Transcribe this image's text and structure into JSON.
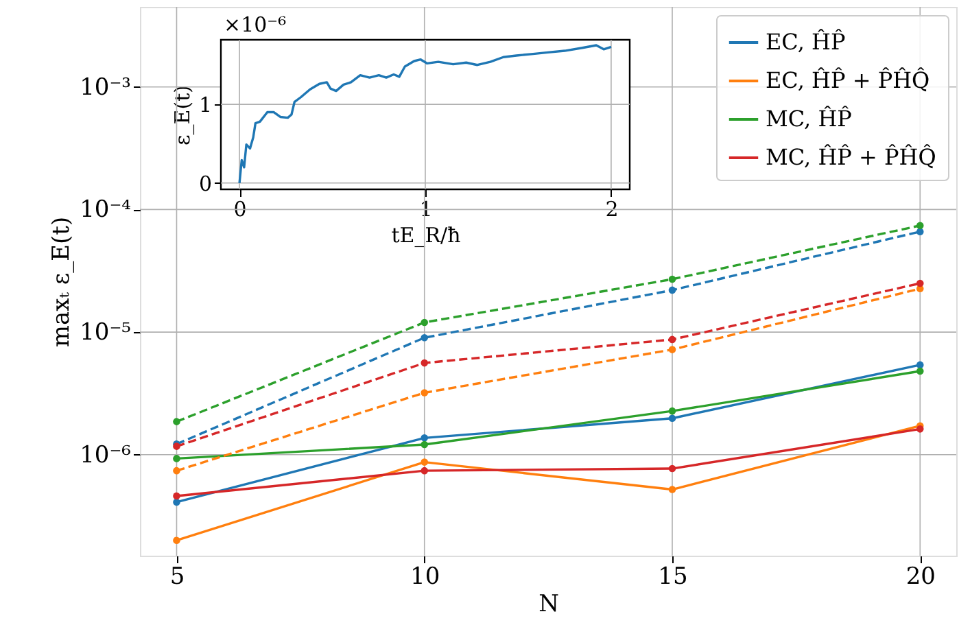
{
  "chart_data": [
    {
      "type": "line",
      "xlabel": "N",
      "ylabel": "maxₜ ε_E(t)",
      "x": [
        5,
        10,
        15,
        20
      ],
      "xlim": [
        4.26,
        20.73
      ],
      "xticks": [
        5,
        10,
        15,
        20
      ],
      "log": "y",
      "ylim": [
        1.5e-07,
        0.0045
      ],
      "yticks": [
        {
          "value": 1e-06,
          "label": "10⁻⁶"
        },
        {
          "value": 1e-05,
          "label": "10⁻⁵"
        },
        {
          "value": 0.0001,
          "label": "10⁻⁴"
        },
        {
          "value": 0.001,
          "label": "10⁻³"
        }
      ],
      "grid": true,
      "legend": "top right",
      "marker": "circle",
      "series": [
        {
          "name": "EC, ĤP̂",
          "color": "#1f77b4",
          "line_style": "solid",
          "values": [
            4.1e-07,
            1.37e-06,
            1.98e-06,
            5.4e-06
          ]
        },
        {
          "name": "EC, ĤP̂ + P̂ĤQ̂",
          "color": "#ff7f0e",
          "line_style": "solid",
          "values": [
            2e-07,
            8.7e-07,
            5.2e-07,
            1.72e-06
          ]
        },
        {
          "name": "MC, ĤP̂",
          "color": "#2ca02c",
          "line_style": "solid",
          "values": [
            9.3e-07,
            1.21e-06,
            2.27e-06,
            4.8e-06
          ]
        },
        {
          "name": "MC, ĤP̂ + P̂ĤQ̂",
          "color": "#d62728",
          "line_style": "solid",
          "values": [
            4.6e-07,
            7.4e-07,
            7.7e-07,
            1.62e-06
          ]
        },
        {
          "color": "#1f77b4",
          "line_style": "dashed",
          "values": [
            1.22e-06,
            9e-06,
            2.2e-05,
            6.6e-05
          ]
        },
        {
          "color": "#ff7f0e",
          "line_style": "dashed",
          "values": [
            7.4e-07,
            3.2e-06,
            7.2e-06,
            2.26e-05
          ]
        },
        {
          "color": "#2ca02c",
          "line_style": "dashed",
          "values": [
            1.86e-06,
            1.2e-05,
            2.7e-05,
            7.4e-05
          ]
        },
        {
          "color": "#d62728",
          "line_style": "dashed",
          "values": [
            1.17e-06,
            5.6e-06,
            8.7e-06,
            2.5e-05
          ]
        }
      ]
    },
    {
      "type": "line",
      "xlabel": "tE_R/ħ",
      "ylabel": "ε_E(t)",
      "annotations": [
        "×10⁻⁶"
      ],
      "xlim": [
        -0.1,
        2.1
      ],
      "xticks": [
        0,
        1,
        2
      ],
      "ylim": [
        -0.08,
        1.82
      ],
      "yticks": [
        0,
        1
      ],
      "grid": true,
      "x": [
        0,
        0.012,
        0.025,
        0.037,
        0.057,
        0.074,
        0.086,
        0.11,
        0.15,
        0.185,
        0.22,
        0.26,
        0.28,
        0.296,
        0.33,
        0.38,
        0.43,
        0.47,
        0.49,
        0.52,
        0.56,
        0.6,
        0.65,
        0.7,
        0.75,
        0.79,
        0.83,
        0.86,
        0.89,
        0.94,
        0.975,
        1.01,
        1.07,
        1.15,
        1.22,
        1.28,
        1.35,
        1.42,
        1.49,
        1.58,
        1.66,
        1.75,
        1.85,
        1.92,
        1.96,
        2.0
      ],
      "series": [
        {
          "color": "#1f77b4",
          "values": [
            0,
            0.29,
            0.2,
            0.49,
            0.44,
            0.58,
            0.76,
            0.78,
            0.9,
            0.9,
            0.84,
            0.83,
            0.87,
            1.03,
            1.09,
            1.19,
            1.26,
            1.28,
            1.2,
            1.17,
            1.25,
            1.28,
            1.37,
            1.34,
            1.37,
            1.34,
            1.38,
            1.35,
            1.48,
            1.55,
            1.57,
            1.52,
            1.54,
            1.51,
            1.53,
            1.5,
            1.54,
            1.6,
            1.62,
            1.64,
            1.66,
            1.68,
            1.72,
            1.75,
            1.7,
            1.73
          ]
        }
      ]
    }
  ]
}
